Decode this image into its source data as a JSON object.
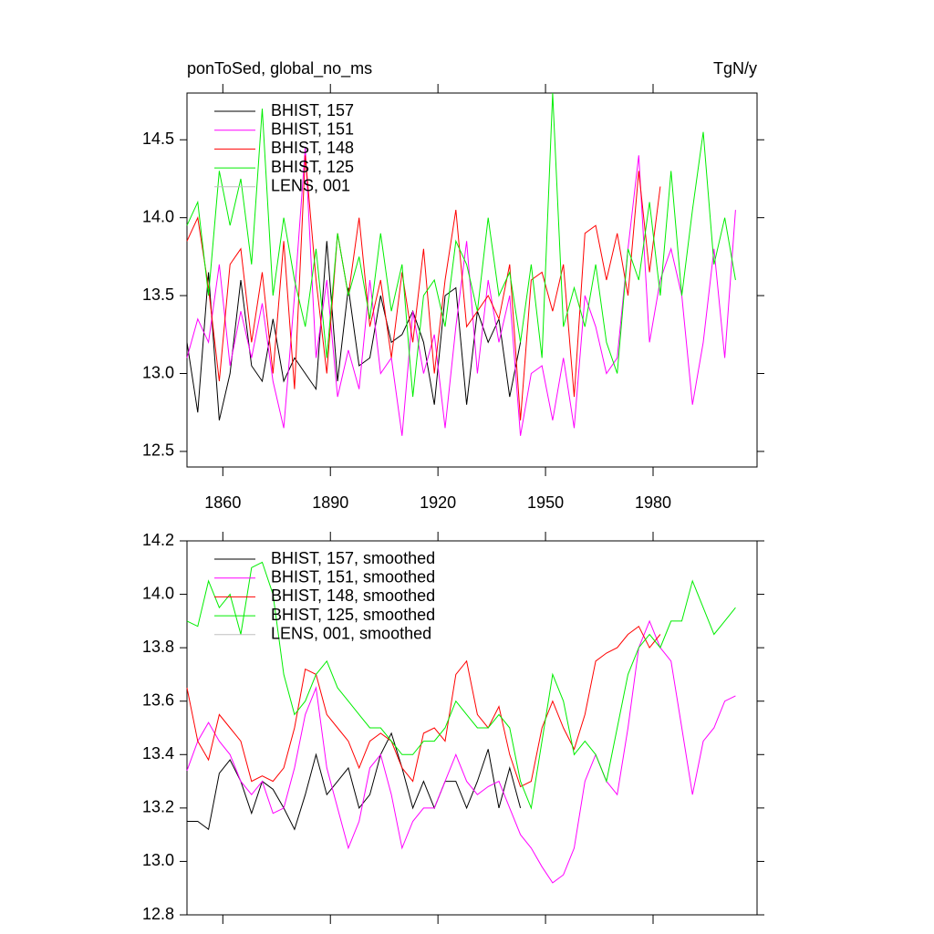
{
  "chart_data": [
    {
      "type": "line",
      "title": "ponToSed, global_no_ms",
      "units": "TgN/y",
      "x": [
        1850,
        1853,
        1856,
        1859,
        1862,
        1865,
        1868,
        1871,
        1874,
        1877,
        1880,
        1883,
        1886,
        1889,
        1892,
        1895,
        1898,
        1901,
        1904,
        1907,
        1910,
        1913,
        1916,
        1919,
        1922,
        1925,
        1928,
        1931,
        1934,
        1937,
        1940,
        1943,
        1946,
        1949,
        1952,
        1955,
        1958,
        1961,
        1964,
        1967,
        1970,
        1973,
        1976,
        1979,
        1982,
        1985,
        1988,
        1991,
        1994,
        1997,
        2000,
        2003
      ],
      "series": [
        {
          "name": "BHIST, 157",
          "color": "#000000",
          "values": [
            13.2,
            12.75,
            13.65,
            12.7,
            13.0,
            13.6,
            13.05,
            12.95,
            13.35,
            12.95,
            13.1,
            13.0,
            12.9,
            13.85,
            12.95,
            13.55,
            13.05,
            13.1,
            13.5,
            13.2,
            13.25,
            13.4,
            13.2,
            12.8,
            13.5,
            13.55,
            12.8,
            13.4,
            13.2,
            13.35,
            12.85,
            13.2,
            null,
            null,
            null,
            null,
            null,
            null,
            null,
            null,
            null,
            null,
            null,
            null,
            null,
            null,
            null,
            null,
            null,
            null,
            null,
            null
          ]
        },
        {
          "name": "BHIST, 151",
          "color": "#ff00ff",
          "values": [
            13.1,
            13.35,
            13.2,
            13.7,
            13.05,
            13.4,
            13.1,
            13.45,
            12.95,
            12.65,
            13.5,
            14.45,
            13.1,
            13.6,
            12.85,
            13.15,
            12.9,
            13.6,
            13.0,
            13.1,
            12.6,
            13.4,
            13.0,
            13.25,
            12.65,
            13.3,
            13.85,
            13.0,
            13.6,
            13.2,
            13.5,
            12.6,
            13.0,
            13.05,
            12.7,
            13.1,
            12.65,
            13.5,
            13.3,
            13.0,
            13.1,
            13.8,
            14.4,
            13.2,
            13.6,
            13.8,
            13.5,
            12.8,
            13.2,
            13.8,
            13.1,
            14.05
          ]
        },
        {
          "name": "BHIST, 148",
          "color": "#ff0000",
          "values": [
            13.85,
            14.0,
            13.55,
            12.95,
            13.7,
            13.8,
            13.2,
            13.65,
            13.0,
            13.85,
            12.9,
            14.4,
            13.6,
            13.0,
            13.9,
            13.5,
            14.0,
            13.3,
            13.6,
            13.1,
            13.65,
            13.2,
            13.8,
            13.0,
            13.6,
            14.05,
            13.3,
            13.4,
            13.5,
            13.35,
            13.7,
            12.7,
            13.6,
            13.65,
            13.4,
            13.7,
            12.85,
            13.9,
            13.95,
            13.6,
            13.9,
            13.5,
            14.3,
            13.65,
            14.2,
            null,
            null,
            null,
            null,
            null,
            null,
            null
          ]
        },
        {
          "name": "BHIST, 125",
          "color": "#00ee00",
          "values": [
            13.95,
            14.1,
            13.5,
            14.3,
            13.95,
            14.25,
            13.7,
            14.7,
            13.5,
            14.0,
            13.6,
            13.3,
            13.8,
            13.1,
            13.9,
            13.5,
            13.75,
            13.35,
            13.9,
            13.4,
            13.7,
            12.85,
            13.5,
            13.6,
            13.3,
            13.85,
            13.7,
            13.4,
            14.0,
            13.5,
            13.65,
            13.2,
            13.7,
            13.1,
            14.8,
            13.3,
            13.55,
            13.3,
            13.7,
            13.2,
            13.0,
            13.8,
            13.6,
            14.1,
            13.5,
            14.3,
            13.5,
            14.05,
            14.55,
            13.7,
            14.0,
            13.6
          ]
        },
        {
          "name": "LENS, 001",
          "color": "#c0c0c0",
          "values": [
            null,
            null,
            null,
            null,
            null,
            null,
            null,
            null,
            null,
            null,
            null,
            null,
            null,
            null,
            null,
            null,
            null,
            null,
            null,
            null,
            null,
            null,
            null,
            null,
            null,
            null,
            null,
            null,
            null,
            null,
            null,
            null,
            null,
            null,
            null,
            null,
            null,
            null,
            null,
            null,
            null,
            null,
            null,
            null,
            null,
            null,
            null,
            null,
            null,
            null,
            null,
            null
          ]
        }
      ],
      "xlim": [
        1850,
        2009
      ],
      "xticks": [
        1860,
        1890,
        1920,
        1950,
        1980
      ],
      "show_xtick_labels": true,
      "ylim": [
        12.4,
        14.8
      ],
      "yticks": [
        12.5,
        {
          "value": 13.0,
          "label": "13.0"
        },
        13.5,
        {
          "value": 14.0,
          "label": "14.0"
        },
        14.5
      ]
    },
    {
      "type": "line",
      "x": [
        1850,
        1853,
        1856,
        1859,
        1862,
        1865,
        1868,
        1871,
        1874,
        1877,
        1880,
        1883,
        1886,
        1889,
        1892,
        1895,
        1898,
        1901,
        1904,
        1907,
        1910,
        1913,
        1916,
        1919,
        1922,
        1925,
        1928,
        1931,
        1934,
        1937,
        1940,
        1943,
        1946,
        1949,
        1952,
        1955,
        1958,
        1961,
        1964,
        1967,
        1970,
        1973,
        1976,
        1979,
        1982,
        1985,
        1988,
        1991,
        1994,
        1997,
        2000,
        2003
      ],
      "series": [
        {
          "name": "BHIST, 157, smoothed",
          "color": "#000000",
          "values": [
            13.15,
            13.15,
            13.12,
            13.33,
            13.38,
            13.3,
            13.18,
            13.3,
            13.27,
            13.2,
            13.12,
            13.25,
            13.4,
            13.25,
            13.3,
            13.35,
            13.2,
            13.25,
            13.4,
            13.48,
            13.35,
            13.2,
            13.3,
            13.2,
            13.3,
            13.3,
            13.2,
            13.3,
            13.42,
            13.2,
            13.35,
            13.2,
            null,
            null,
            null,
            null,
            null,
            null,
            null,
            null,
            null,
            null,
            null,
            null,
            null,
            null,
            null,
            null,
            null,
            null,
            null,
            null
          ]
        },
        {
          "name": "BHIST, 151, smoothed",
          "color": "#ff00ff",
          "values": [
            13.34,
            13.45,
            13.52,
            13.45,
            13.4,
            13.3,
            13.25,
            13.3,
            13.18,
            13.2,
            13.35,
            13.55,
            13.65,
            13.35,
            13.2,
            13.05,
            13.15,
            13.35,
            13.4,
            13.25,
            13.05,
            13.15,
            13.2,
            13.2,
            13.3,
            13.4,
            13.3,
            13.25,
            13.28,
            13.3,
            13.2,
            13.1,
            13.05,
            12.98,
            12.92,
            12.95,
            13.05,
            13.3,
            13.4,
            13.3,
            13.25,
            13.5,
            13.8,
            13.9,
            13.8,
            13.75,
            13.5,
            13.25,
            13.45,
            13.5,
            13.6,
            13.62
          ]
        },
        {
          "name": "BHIST, 148, smoothed",
          "color": "#ff0000",
          "values": [
            13.65,
            13.45,
            13.38,
            13.55,
            13.5,
            13.45,
            13.3,
            13.32,
            13.3,
            13.35,
            13.5,
            13.72,
            13.7,
            13.55,
            13.5,
            13.45,
            13.35,
            13.45,
            13.48,
            13.45,
            13.35,
            13.3,
            13.48,
            13.5,
            13.45,
            13.7,
            13.75,
            13.55,
            13.5,
            13.58,
            13.4,
            13.28,
            13.3,
            13.5,
            13.6,
            13.5,
            13.42,
            13.55,
            13.75,
            13.78,
            13.8,
            13.85,
            13.88,
            13.8,
            13.85,
            null,
            null,
            null,
            null,
            null,
            null,
            null
          ]
        },
        {
          "name": "BHIST, 125, smoothed",
          "color": "#00ee00",
          "values": [
            13.9,
            13.88,
            14.05,
            13.95,
            14.0,
            13.85,
            14.1,
            14.12,
            14.0,
            13.7,
            13.55,
            13.6,
            13.7,
            13.75,
            13.65,
            13.6,
            13.55,
            13.5,
            13.5,
            13.45,
            13.4,
            13.4,
            13.45,
            13.45,
            13.5,
            13.6,
            13.55,
            13.5,
            13.5,
            13.55,
            13.5,
            13.3,
            13.2,
            13.45,
            13.7,
            13.6,
            13.4,
            13.45,
            13.4,
            13.3,
            13.5,
            13.7,
            13.8,
            13.85,
            13.8,
            13.9,
            13.9,
            14.05,
            13.95,
            13.85,
            13.9,
            13.95
          ]
        },
        {
          "name": "LENS, 001, smoothed",
          "color": "#c0c0c0",
          "values": [
            null,
            null,
            null,
            null,
            null,
            null,
            null,
            null,
            null,
            null,
            null,
            null,
            null,
            null,
            null,
            null,
            null,
            null,
            null,
            null,
            null,
            null,
            null,
            null,
            null,
            null,
            null,
            null,
            null,
            null,
            null,
            null,
            null,
            null,
            null,
            null,
            null,
            null,
            null,
            null,
            null,
            null,
            null,
            null,
            null,
            null,
            null,
            null,
            null,
            null,
            null,
            null
          ]
        }
      ],
      "xlim": [
        1850,
        2009
      ],
      "xticks": [
        1860,
        1890,
        1920,
        1950,
        1980
      ],
      "show_xtick_labels": false,
      "ylim": [
        12.8,
        14.2
      ],
      "yticks": [
        12.8,
        {
          "value": 13.0,
          "label": "13.0"
        },
        13.2,
        13.4,
        13.6,
        13.8,
        {
          "value": 14.0,
          "label": "14.0"
        },
        14.2
      ]
    }
  ]
}
